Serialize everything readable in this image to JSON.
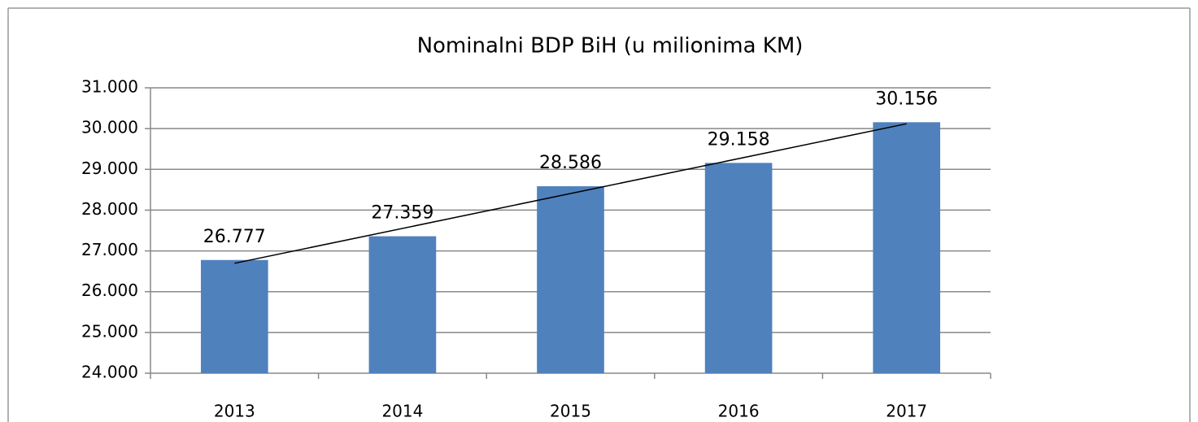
{
  "chart_data": {
    "type": "bar",
    "title": "Nominalni BDP BiH (u milionima KM)",
    "categories": [
      "2013",
      "2014",
      "2015",
      "2016",
      "2017"
    ],
    "values": [
      26777,
      27359,
      28586,
      29158,
      30156
    ],
    "value_labels": [
      "26.777",
      "27.359",
      "28.586",
      "29.158",
      "30.156"
    ],
    "color": "#4f81bd",
    "ylim": [
      24000,
      31000
    ],
    "yticks": [
      {
        "value": 24000,
        "label": "24.000"
      },
      {
        "value": 25000,
        "label": "25.000"
      },
      {
        "value": 26000,
        "label": "26.000"
      },
      {
        "value": 27000,
        "label": "27.000"
      },
      {
        "value": 28000,
        "label": "28.000"
      },
      {
        "value": 29000,
        "label": "29.000"
      },
      {
        "value": 30000,
        "label": "30.000"
      },
      {
        "value": 31000,
        "label": "31.000"
      }
    ],
    "grid": true,
    "trendline": "linear"
  }
}
